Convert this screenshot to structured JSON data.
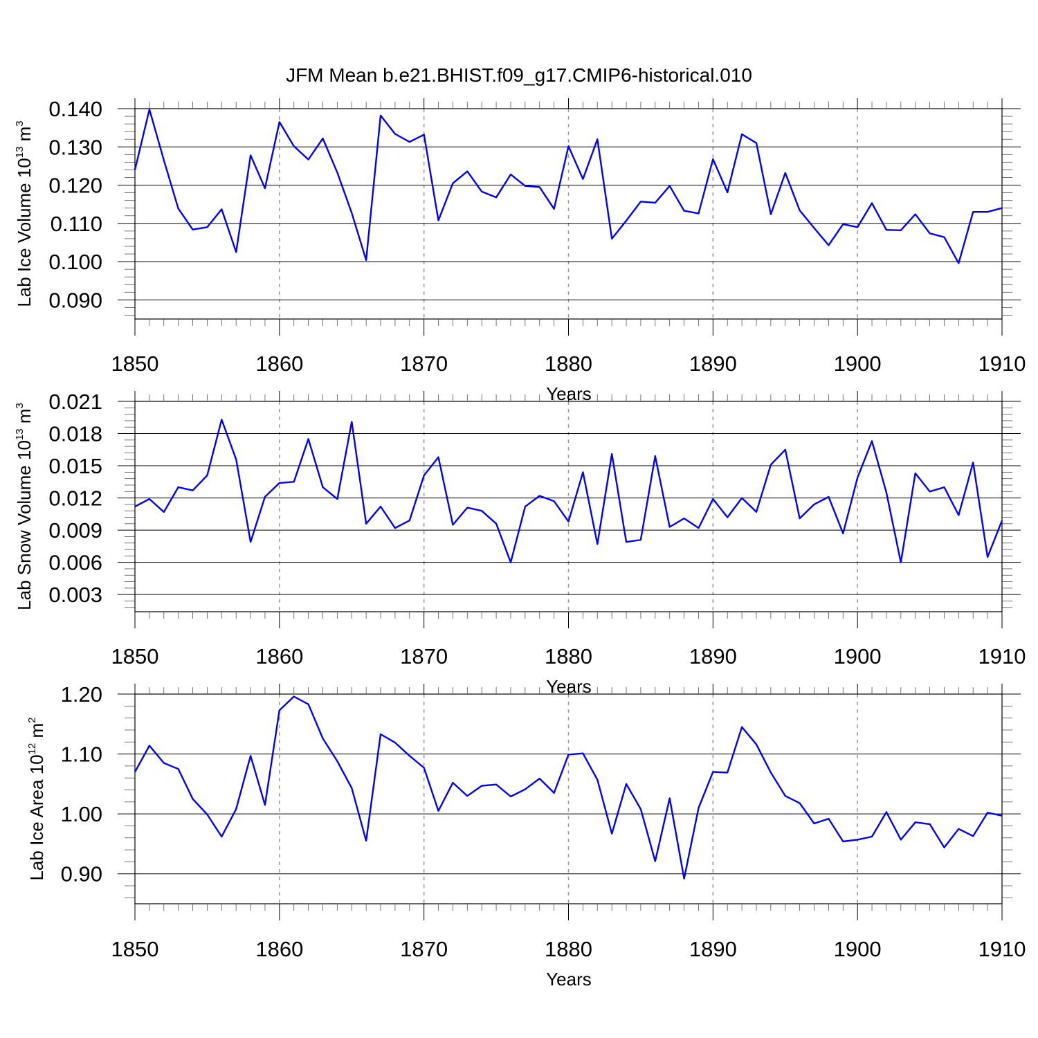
{
  "chart_data": [
    {
      "type": "line",
      "title": "JFM Mean b.e21.BHIST.f09_g17.CMIP6-historical.010",
      "xlabel": "Years",
      "ylabel_text": "Lab Ice Volume 10",
      "ylabel_exp": "13",
      "ylabel_unit": " m",
      "ylabel_unit_exp": "3",
      "xlim": [
        1850,
        1910
      ],
      "ylim": [
        0.085,
        0.14
      ],
      "x_ticks": [
        1850,
        1860,
        1870,
        1880,
        1890,
        1900,
        1910
      ],
      "x_tick_labels": [
        "1850",
        "1860",
        "1870",
        "1880",
        "1890",
        "1900",
        "1910"
      ],
      "y_ticks": [
        0.09,
        0.1,
        0.11,
        0.12,
        0.13,
        0.14
      ],
      "y_tick_labels": [
        "0.090",
        "0.100",
        "0.110",
        "0.120",
        "0.130",
        "0.140"
      ],
      "y_minor_step": 0.002,
      "x_start": 1850,
      "color": "#0000ff",
      "values": [
        0.124,
        0.1398,
        0.1265,
        0.1139,
        0.1084,
        0.109,
        0.1137,
        0.1025,
        0.1278,
        0.1192,
        0.1365,
        0.1302,
        0.1267,
        0.1322,
        0.1233,
        0.1127,
        0.1004,
        0.1382,
        0.1334,
        0.1313,
        0.1332,
        0.1108,
        0.1205,
        0.1236,
        0.1183,
        0.1168,
        0.1228,
        0.1198,
        0.1195,
        0.1138,
        0.1302,
        0.1216,
        0.132,
        0.106,
        0.1107,
        0.1157,
        0.1154,
        0.1198,
        0.1133,
        0.1126,
        0.1268,
        0.1181,
        0.1333,
        0.131,
        0.1124,
        0.1232,
        0.1134,
        0.1088,
        0.1043,
        0.1098,
        0.109,
        0.1153,
        0.1083,
        0.1082,
        0.1124,
        0.1074,
        0.1064,
        0.0996,
        0.113,
        0.113,
        0.114
      ]
    },
    {
      "type": "line",
      "title": "",
      "xlabel": "Years",
      "ylabel_text": "Lab Snow Volume 10",
      "ylabel_exp": "13",
      "ylabel_unit": " m",
      "ylabel_unit_exp": "3",
      "xlim": [
        1850,
        1910
      ],
      "ylim": [
        0.0014,
        0.021
      ],
      "x_ticks": [
        1850,
        1860,
        1870,
        1880,
        1890,
        1900,
        1910
      ],
      "x_tick_labels": [
        "1850",
        "1860",
        "1870",
        "1880",
        "1890",
        "1900",
        "1910"
      ],
      "y_ticks": [
        0.003,
        0.006,
        0.009,
        0.012,
        0.015,
        0.018,
        0.021
      ],
      "y_tick_labels": [
        "0.003",
        "0.006",
        "0.009",
        "0.012",
        "0.015",
        "0.018",
        "0.021"
      ],
      "y_minor_step": 0.0006,
      "x_start": 1850,
      "color": "#0000ff",
      "values": [
        0.0112,
        0.0119,
        0.0107,
        0.013,
        0.0127,
        0.0141,
        0.0193,
        0.0156,
        0.0079,
        0.0121,
        0.0134,
        0.0135,
        0.0175,
        0.013,
        0.0119,
        0.0191,
        0.0096,
        0.0112,
        0.0092,
        0.0099,
        0.0141,
        0.0158,
        0.0095,
        0.0111,
        0.0108,
        0.0096,
        0.006,
        0.0112,
        0.0122,
        0.0117,
        0.0098,
        0.0144,
        0.0077,
        0.0161,
        0.0079,
        0.0081,
        0.0159,
        0.0093,
        0.0101,
        0.0092,
        0.0119,
        0.0102,
        0.012,
        0.0107,
        0.0151,
        0.0165,
        0.0101,
        0.0114,
        0.0121,
        0.0087,
        0.0139,
        0.0173,
        0.0125,
        0.006,
        0.0143,
        0.0126,
        0.013,
        0.0104,
        0.0153,
        0.0065,
        0.0099
      ]
    },
    {
      "type": "line",
      "title": "",
      "xlabel": "Years",
      "ylabel_text": "Lab Ice Area 10",
      "ylabel_exp": "12",
      "ylabel_unit": " m",
      "ylabel_unit_exp": "2",
      "xlim": [
        1850,
        1910
      ],
      "ylim": [
        0.85,
        1.2
      ],
      "x_ticks": [
        1850,
        1860,
        1870,
        1880,
        1890,
        1900,
        1910
      ],
      "x_tick_labels": [
        "1850",
        "1860",
        "1870",
        "1880",
        "1890",
        "1900",
        "1910"
      ],
      "y_ticks": [
        0.9,
        1.0,
        1.1,
        1.2
      ],
      "y_tick_labels": [
        "0.90",
        "1.00",
        "1.10",
        "1.20"
      ],
      "y_minor_step": 0.02,
      "x_start": 1850,
      "color": "#0000ff",
      "values": [
        1.07,
        1.114,
        1.085,
        1.075,
        1.025,
        0.999,
        0.962,
        1.008,
        1.097,
        1.015,
        1.173,
        1.196,
        1.183,
        1.126,
        1.088,
        1.043,
        0.955,
        1.133,
        1.119,
        1.097,
        1.077,
        1.005,
        1.052,
        1.03,
        1.047,
        1.049,
        1.029,
        1.041,
        1.059,
        1.035,
        1.099,
        1.101,
        1.057,
        0.967,
        1.05,
        1.008,
        0.921,
        1.026,
        0.892,
        1.01,
        1.07,
        1.069,
        1.145,
        1.116,
        1.069,
        1.03,
        1.018,
        0.984,
        0.992,
        0.954,
        0.957,
        0.962,
        1.003,
        0.957,
        0.986,
        0.983,
        0.944,
        0.975,
        0.963,
        1.002,
        0.997
      ]
    }
  ]
}
